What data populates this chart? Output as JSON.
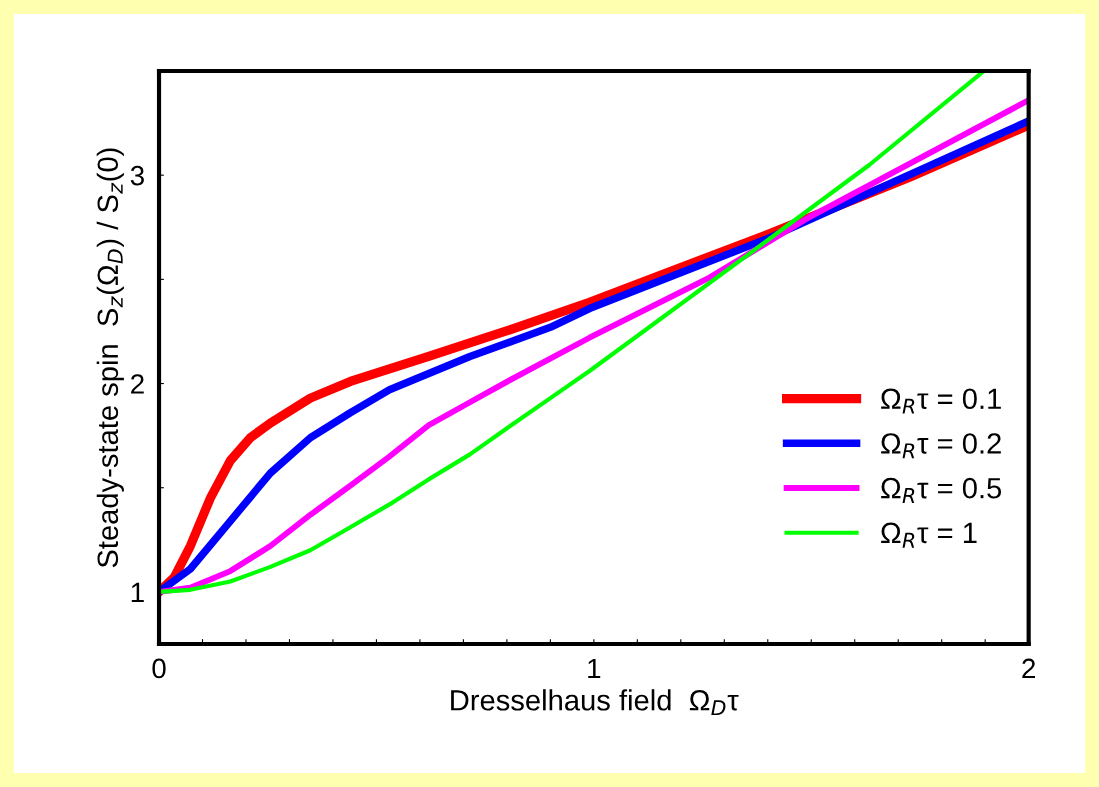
{
  "chart_data": {
    "type": "line",
    "xlabel": "Dresselhaus field  Ω$_{D}$τ",
    "ylabel": "Steady-state spin  S$_{z}$(Ω$_{D}$) / S$_{z}$(0)",
    "xlim": [
      0,
      2
    ],
    "ylim": [
      0.75,
      3.5
    ],
    "xticks": [
      0,
      {
        "value": 0.1,
        "label": null
      },
      {
        "value": 0.2,
        "label": null
      },
      {
        "value": 0.3,
        "label": null
      },
      {
        "value": 0.4,
        "label": null
      },
      {
        "value": 0.5,
        "label": null
      },
      {
        "value": 0.6,
        "label": null
      },
      {
        "value": 0.7,
        "label": null
      },
      {
        "value": 0.8,
        "label": null
      },
      {
        "value": 0.9,
        "label": null
      },
      1,
      {
        "value": 1.1,
        "label": null
      },
      {
        "value": 1.2,
        "label": null
      },
      {
        "value": 1.3,
        "label": null
      },
      {
        "value": 1.4,
        "label": null
      },
      {
        "value": 1.5,
        "label": null
      },
      {
        "value": 1.6,
        "label": null
      },
      {
        "value": 1.7,
        "label": null
      },
      {
        "value": 1.8,
        "label": null
      },
      {
        "value": 1.9,
        "label": null
      },
      2
    ],
    "yticks": [
      1,
      {
        "value": 1.5,
        "label": null
      },
      2,
      {
        "value": 2.5,
        "label": null
      },
      3
    ],
    "grid": false,
    "legend": "bottom right",
    "marker": "none",
    "line_style": "solid",
    "series": [
      {
        "name": "Ω$_{R}$τ = 0.1",
        "color": "#ff0000",
        "x": [
          0,
          0.035,
          0.072,
          0.118,
          0.164,
          0.21,
          0.256,
          0.348,
          0.44,
          0.62,
          0.81,
          0.99,
          1.405,
          1.726,
          2.0
        ],
        "values": [
          1,
          1.07,
          1.22,
          1.45,
          1.63,
          1.74,
          1.81,
          1.93,
          2.01,
          2.13,
          2.26,
          2.39,
          2.72,
          2.99,
          3.24
        ]
      },
      {
        "name": "Ω$_{R}$τ = 0.2",
        "color": "#0000ff",
        "x": [
          0,
          0.072,
          0.164,
          0.256,
          0.348,
          0.44,
          0.53,
          0.715,
          0.9,
          0.99,
          1.405,
          2.0
        ],
        "values": [
          1,
          1.11,
          1.34,
          1.57,
          1.74,
          1.86,
          1.97,
          2.13,
          2.27,
          2.36,
          2.7,
          3.26
        ]
      },
      {
        "name": "Ω$_{R}$τ = 0.5",
        "color": "#ff00ff",
        "x": [
          0,
          0.072,
          0.164,
          0.256,
          0.348,
          0.44,
          0.53,
          0.62,
          0.715,
          0.81,
          0.99,
          1.267,
          1.497,
          2.0
        ],
        "values": [
          1,
          1.02,
          1.1,
          1.22,
          1.37,
          1.51,
          1.65,
          1.8,
          1.91,
          2.02,
          2.22,
          2.51,
          2.8,
          3.36
        ]
      },
      {
        "name": "Ω$_{R}$τ = 1",
        "color": "#00ff00",
        "x": [
          0,
          0.072,
          0.164,
          0.256,
          0.348,
          0.44,
          0.53,
          0.62,
          0.715,
          0.81,
          0.9,
          0.99,
          1.359,
          1.634,
          1.897
        ],
        "values": [
          1,
          1.01,
          1.05,
          1.12,
          1.2,
          1.31,
          1.42,
          1.54,
          1.66,
          1.8,
          1.93,
          2.06,
          2.625,
          3.05,
          3.5
        ]
      }
    ]
  }
}
